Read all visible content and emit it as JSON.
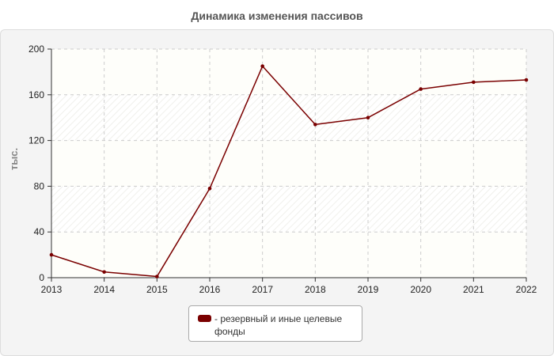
{
  "chart_data": {
    "type": "line",
    "title": "Динамика изменения пассивов",
    "ylabel": "тыс.",
    "xlabel": "",
    "x": [
      "2013",
      "2014",
      "2015",
      "2016",
      "2017",
      "2018",
      "2019",
      "2020",
      "2021",
      "2022"
    ],
    "series": [
      {
        "name": "- резервный и иные целевые фонды",
        "values": [
          20,
          5,
          1,
          78,
          185,
          134,
          140,
          165,
          171,
          173
        ]
      }
    ],
    "ylim": [
      0,
      200
    ],
    "yticks": [
      0,
      40,
      80,
      120,
      160,
      200
    ],
    "grid": true,
    "legend": "bottom",
    "colors": {
      "series": "#7a0000",
      "grid": "#cccccc"
    }
  }
}
